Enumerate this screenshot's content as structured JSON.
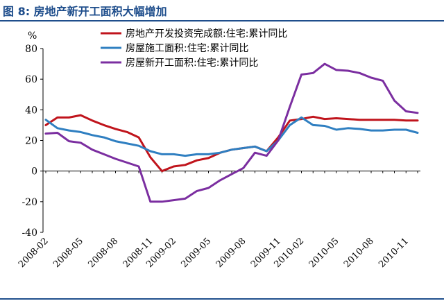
{
  "figure": {
    "title": "图 8:  房地产新开工面积大幅增加"
  },
  "chart_data": {
    "type": "line",
    "title": "图 8:  房地产新开工面积大幅增加",
    "ylabel": "%",
    "xlabel": "",
    "ylim": [
      -40,
      80
    ],
    "yticks": [
      80,
      60,
      40,
      20,
      0,
      -20,
      -40
    ],
    "grid": false,
    "legend_position": "top-center",
    "x": [
      "2008-02",
      "2008-03",
      "2008-04",
      "2008-05",
      "2008-06",
      "2008-07",
      "2008-08",
      "2008-09",
      "2008-10",
      "2008-11",
      "2008-12",
      "2009-02",
      "2009-03",
      "2009-04",
      "2009-05",
      "2009-06",
      "2009-07",
      "2009-08",
      "2009-09",
      "2009-10",
      "2009-11",
      "2009-12",
      "2010-02",
      "2010-03",
      "2010-04",
      "2010-05",
      "2010-06",
      "2010-07",
      "2010-08",
      "2010-09",
      "2010-10",
      "2010-11",
      "2010-12"
    ],
    "xtick_labels": [
      "2008-02",
      "2008-05",
      "2008-08",
      "2008-11",
      "2009-02",
      "2009-05",
      "2009-08",
      "2009-11",
      "2010-02",
      "2010-05",
      "2010-08",
      "2010-11"
    ],
    "series": [
      {
        "name": "房地产开发投资完成额:住宅:累计同比",
        "color": "#c0141c",
        "values": [
          30,
          35,
          35,
          36.5,
          33,
          30,
          27.5,
          25.5,
          22,
          9,
          0,
          3,
          4,
          7,
          8.5,
          12,
          14,
          15,
          16,
          13,
          22,
          33,
          34,
          35.5,
          34,
          34.5,
          34,
          33.5,
          33.5,
          33.5,
          33.5,
          33,
          33
        ]
      },
      {
        "name": "房屋施工面积:住宅:累计同比",
        "color": "#2f7fc1",
        "values": [
          33.5,
          28,
          26.5,
          25.5,
          23.5,
          22,
          19.5,
          18,
          16.5,
          13,
          11,
          11,
          10,
          11,
          11,
          12,
          14,
          15,
          16,
          13,
          20,
          30,
          35,
          30,
          29.5,
          27,
          28,
          27.5,
          26.5,
          26.5,
          27,
          27,
          25
        ]
      },
      {
        "name": "房屋新开工面积:住宅:累计同比",
        "color": "#7b2ea0",
        "values": [
          24.5,
          25,
          19.5,
          18.5,
          14,
          11,
          8,
          5.5,
          3,
          -20,
          -20,
          -19,
          -18,
          -13,
          -11,
          -6,
          -2,
          2,
          12,
          10,
          20,
          42,
          63,
          64,
          70,
          66,
          65.5,
          64,
          61,
          59,
          46,
          39,
          38
        ]
      }
    ]
  }
}
